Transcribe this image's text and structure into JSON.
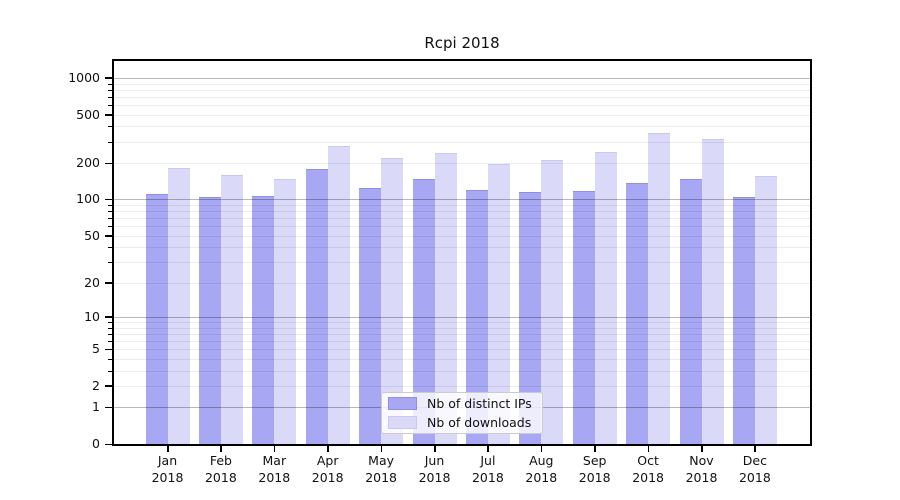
{
  "figure": {
    "title": "Rcpi 2018"
  },
  "colors": {
    "distinct_ips_fill": "#a7a7f4",
    "distinct_ips_edge": "#8f8fe8",
    "downloads_fill": "#dadaf8",
    "downloads_edge": "#c8c8f2",
    "grid_minor": "rgba(0,0,0,0.075)",
    "grid_major": "rgba(0,0,0,0.28)",
    "axis": "#000000"
  },
  "legend": {
    "entries": [
      {
        "label": "Nb of distinct IPs"
      },
      {
        "label": "Nb of downloads"
      }
    ]
  },
  "chart_data": {
    "type": "bar",
    "title": "Rcpi 2018",
    "categories": [
      "Jan 2018",
      "Feb 2018",
      "Mar 2018",
      "Apr 2018",
      "May 2018",
      "Jun 2018",
      "Jul 2018",
      "Aug 2018",
      "Sep 2018",
      "Oct 2018",
      "Nov 2018",
      "Dec 2018"
    ],
    "series": [
      {
        "name": "Nb of distinct IPs",
        "values": [
          111,
          104,
          107,
          178,
          125,
          147,
          120,
          115,
          118,
          136,
          148,
          105
        ]
      },
      {
        "name": "Nb of downloads",
        "values": [
          183,
          159,
          148,
          276,
          221,
          240,
          196,
          212,
          248,
          351,
          315,
          157
        ]
      }
    ],
    "xlabel": "",
    "ylabel": "",
    "yscale": "log1p",
    "y_ticks": [
      0,
      1,
      2,
      5,
      10,
      20,
      50,
      100,
      200,
      500,
      1000
    ],
    "y_major_gridlines": [
      1,
      10,
      100,
      1000
    ],
    "ylim": [
      0,
      1390
    ],
    "grid": "horizontal",
    "legend_position": "lower center"
  }
}
